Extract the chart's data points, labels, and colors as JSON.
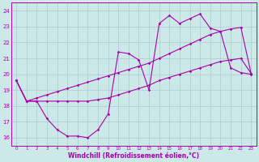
{
  "xlabel": "Windchill (Refroidissement éolien,°C)",
  "background_color": "#cce8e8",
  "grid_color": "#aacccc",
  "line_color": "#aa00aa",
  "x_hours": [
    0,
    1,
    2,
    3,
    4,
    5,
    6,
    7,
    8,
    9,
    10,
    11,
    12,
    13,
    14,
    15,
    16,
    17,
    18,
    19,
    20,
    21,
    22,
    23
  ],
  "windchill": [
    19.6,
    18.3,
    18.3,
    17.2,
    16.5,
    16.1,
    16.1,
    16.0,
    16.5,
    17.5,
    21.4,
    21.3,
    20.9,
    19.0,
    23.2,
    23.7,
    23.2,
    23.5,
    23.8,
    22.9,
    22.7,
    20.4,
    20.1,
    20.0
  ],
  "line_upper": [
    19.6,
    18.3,
    18.5,
    18.7,
    18.9,
    19.1,
    19.3,
    19.5,
    19.7,
    19.9,
    20.1,
    20.3,
    20.5,
    20.7,
    21.0,
    21.3,
    21.6,
    21.9,
    22.2,
    22.5,
    22.7,
    22.85,
    22.95,
    20.05
  ],
  "line_lower": [
    19.6,
    18.3,
    18.3,
    18.3,
    18.3,
    18.3,
    18.3,
    18.3,
    18.4,
    18.5,
    18.7,
    18.9,
    19.1,
    19.3,
    19.6,
    19.8,
    20.0,
    20.2,
    20.4,
    20.6,
    20.8,
    20.9,
    21.0,
    20.05
  ],
  "ylim": [
    15.5,
    24.5
  ],
  "yticks": [
    16,
    17,
    18,
    19,
    20,
    21,
    22,
    23,
    24
  ],
  "xlim": [
    -0.5,
    23.5
  ],
  "marker_size": 1.8,
  "line_width": 0.8
}
